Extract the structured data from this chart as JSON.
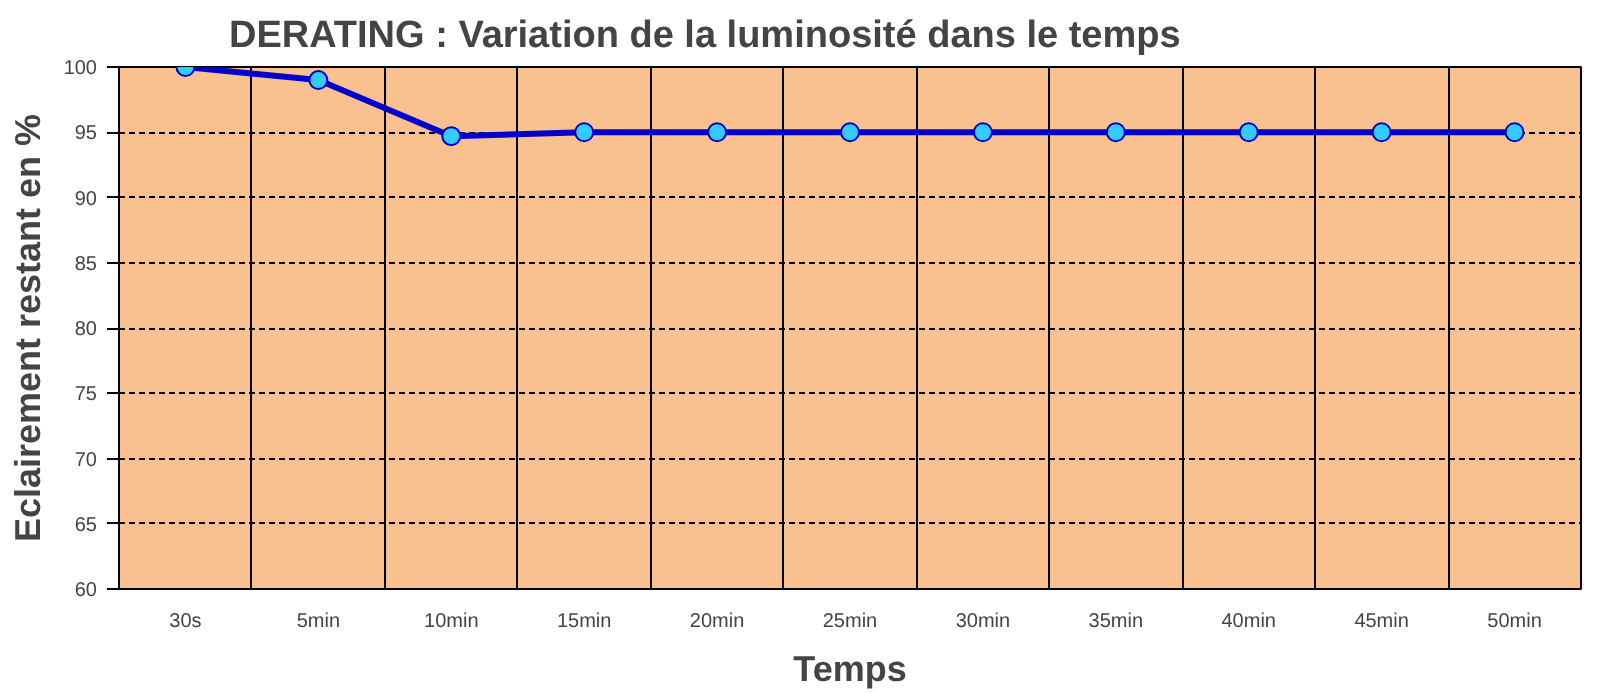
{
  "chart_data": {
    "type": "line",
    "title": "DERATING : Variation de la luminosité dans le temps",
    "xlabel": "Temps",
    "ylabel": "Eclairement restant en %",
    "categories": [
      "30s",
      "5min",
      "10min",
      "15min",
      "20min",
      "25min",
      "30min",
      "35min",
      "40min",
      "45min",
      "50min"
    ],
    "series": [
      {
        "color": "#0000cc",
        "values": [
          100,
          99,
          94.7,
          95,
          95,
          95,
          95,
          95,
          95,
          95,
          95
        ]
      }
    ],
    "ylim": [
      60,
      100
    ],
    "yticks": [
      60,
      65,
      70,
      75,
      80,
      85,
      90,
      95,
      100
    ],
    "grid": true,
    "marker": "circle",
    "line_style": "solid"
  }
}
